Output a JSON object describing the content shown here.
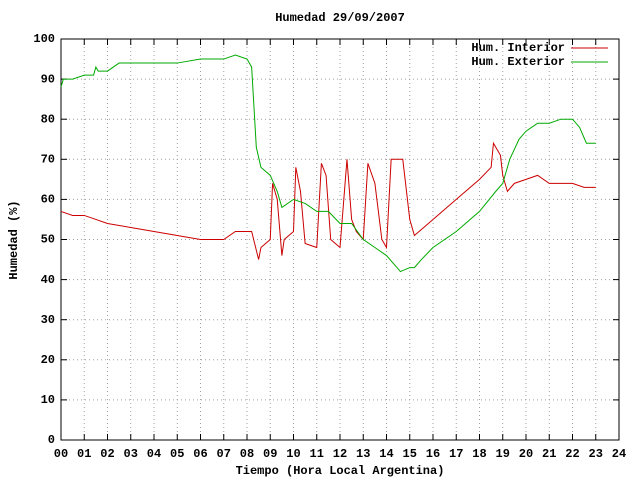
{
  "chart_data": {
    "type": "line",
    "title": "Humedad 29/09/2007",
    "xlabel": "Tiempo (Hora Local Argentina)",
    "ylabel": "Humedad (%)",
    "xlim": [
      0,
      24
    ],
    "ylim": [
      0,
      100
    ],
    "xticks": [
      {
        "value": 0,
        "label": "00"
      },
      {
        "value": 1,
        "label": "01"
      },
      {
        "value": 2,
        "label": "02"
      },
      {
        "value": 3,
        "label": "03"
      },
      {
        "value": 4,
        "label": "04"
      },
      {
        "value": 5,
        "label": "05"
      },
      {
        "value": 6,
        "label": "06"
      },
      {
        "value": 7,
        "label": "07"
      },
      {
        "value": 8,
        "label": "08"
      },
      {
        "value": 9,
        "label": "09"
      },
      10,
      11,
      12,
      13,
      14,
      15,
      16,
      17,
      18,
      19,
      20,
      21,
      22,
      23,
      24
    ],
    "yticks": [
      0,
      10,
      20,
      30,
      40,
      50,
      60,
      70,
      80,
      90,
      100
    ],
    "grid": true,
    "legend": "top-right",
    "series": [
      {
        "name": "Hum. Interior",
        "color": "#cc0000",
        "x": [
          0,
          0.5,
          1,
          1.5,
          2,
          3,
          4,
          5,
          6,
          7,
          7.5,
          8,
          8.2,
          8.5,
          8.6,
          9,
          9.1,
          9.3,
          9.5,
          9.6,
          10,
          10.1,
          10.3,
          10.5,
          11,
          11.2,
          11.4,
          11.6,
          12,
          12.3,
          12.5,
          12.7,
          13,
          13.2,
          13.5,
          13.8,
          14,
          14.2,
          14.7,
          15,
          15.2,
          16,
          17,
          18,
          18.5,
          18.6,
          18.9,
          19,
          19.2,
          19.5,
          20,
          20.5,
          21,
          21.5,
          22,
          22.5,
          23
        ],
        "values": [
          57,
          56,
          56,
          55,
          54,
          53,
          52,
          51,
          50,
          50,
          52,
          52,
          52,
          45,
          48,
          50,
          64,
          60,
          46,
          50,
          52,
          68,
          62,
          49,
          48,
          69,
          66,
          50,
          48,
          70,
          55,
          52,
          50,
          69,
          64,
          50,
          48,
          70,
          70,
          55,
          51,
          55,
          60,
          65,
          68,
          74,
          71,
          66,
          62,
          64,
          65,
          66,
          64,
          64,
          64,
          63,
          63
        ]
      },
      {
        "name": "Hum. Exterior",
        "color": "#00aa00",
        "x": [
          0,
          0.1,
          0.5,
          1,
          1.4,
          1.5,
          1.6,
          2,
          2.5,
          3,
          4,
          5,
          6,
          7,
          7.5,
          8,
          8.2,
          8.4,
          8.6,
          9,
          9.3,
          9.5,
          10,
          10.5,
          11,
          11.5,
          12,
          12.5,
          13,
          13.5,
          14,
          14.3,
          14.6,
          15,
          15.2,
          15.5,
          16,
          17,
          18,
          18.7,
          19,
          19.3,
          19.7,
          20,
          20.5,
          21,
          21.5,
          22,
          22.3,
          22.6,
          23
        ],
        "values": [
          88,
          90,
          90,
          91,
          91,
          93,
          92,
          92,
          94,
          94,
          94,
          94,
          95,
          95,
          96,
          95,
          93,
          73,
          68,
          66,
          62,
          58,
          60,
          59,
          57,
          57,
          54,
          54,
          50,
          48,
          46,
          44,
          42,
          43,
          43,
          45,
          48,
          52,
          57,
          62,
          64,
          70,
          75,
          77,
          79,
          79,
          80,
          80,
          78,
          74,
          74
        ]
      }
    ]
  }
}
